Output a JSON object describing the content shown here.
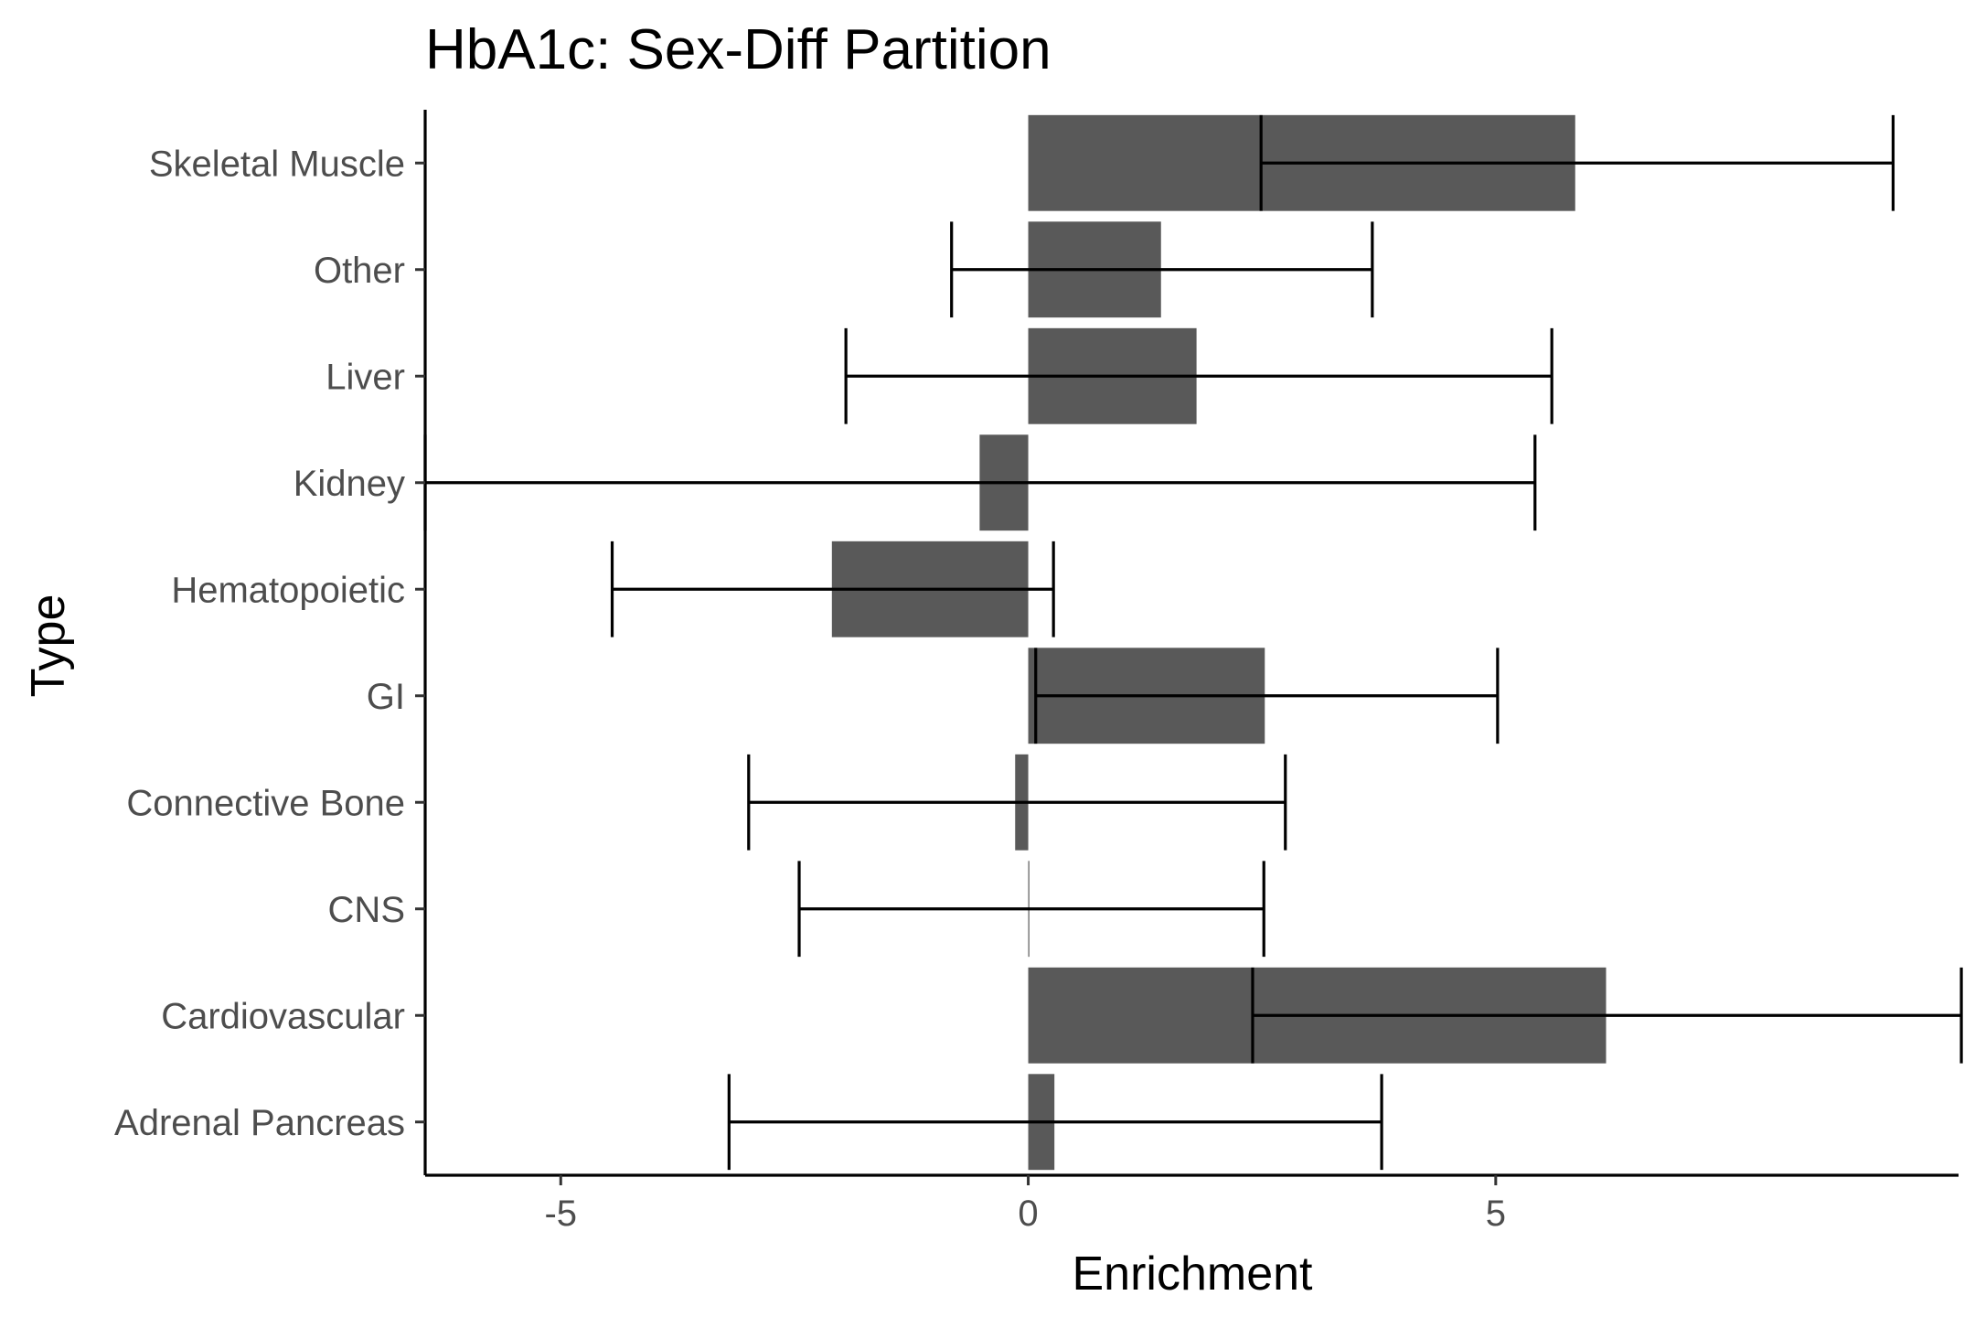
{
  "chart_data": {
    "type": "bar",
    "orientation": "horizontal",
    "title": "HbA1c: Sex-Diff Partition",
    "xlabel": "Enrichment",
    "ylabel": "Type",
    "xlim": [
      -6.45,
      9.95
    ],
    "x_ticks": [
      -5,
      0,
      5
    ],
    "x_tick_labels": [
      "-5",
      "0",
      "5"
    ],
    "grid": false,
    "legend": "none",
    "categories": [
      "Skeletal Muscle",
      "Other",
      "Liver",
      "Kidney",
      "Hematopoietic",
      "GI",
      "Connective Bone",
      "CNS",
      "Cardiovascular",
      "Adrenal Pancreas"
    ],
    "values": [
      5.85,
      1.42,
      1.8,
      -0.52,
      -2.1,
      2.53,
      -0.14,
      0.0,
      6.18,
      0.28
    ],
    "error_low": [
      2.49,
      -0.82,
      -1.95,
      -6.45,
      -4.45,
      0.08,
      -2.99,
      -2.45,
      2.4,
      -3.2
    ],
    "error_high": [
      9.25,
      3.68,
      5.6,
      5.42,
      0.27,
      5.02,
      2.75,
      2.52,
      9.98,
      3.78
    ],
    "bar_color": "#595959",
    "errorbar_color": "#000000"
  }
}
